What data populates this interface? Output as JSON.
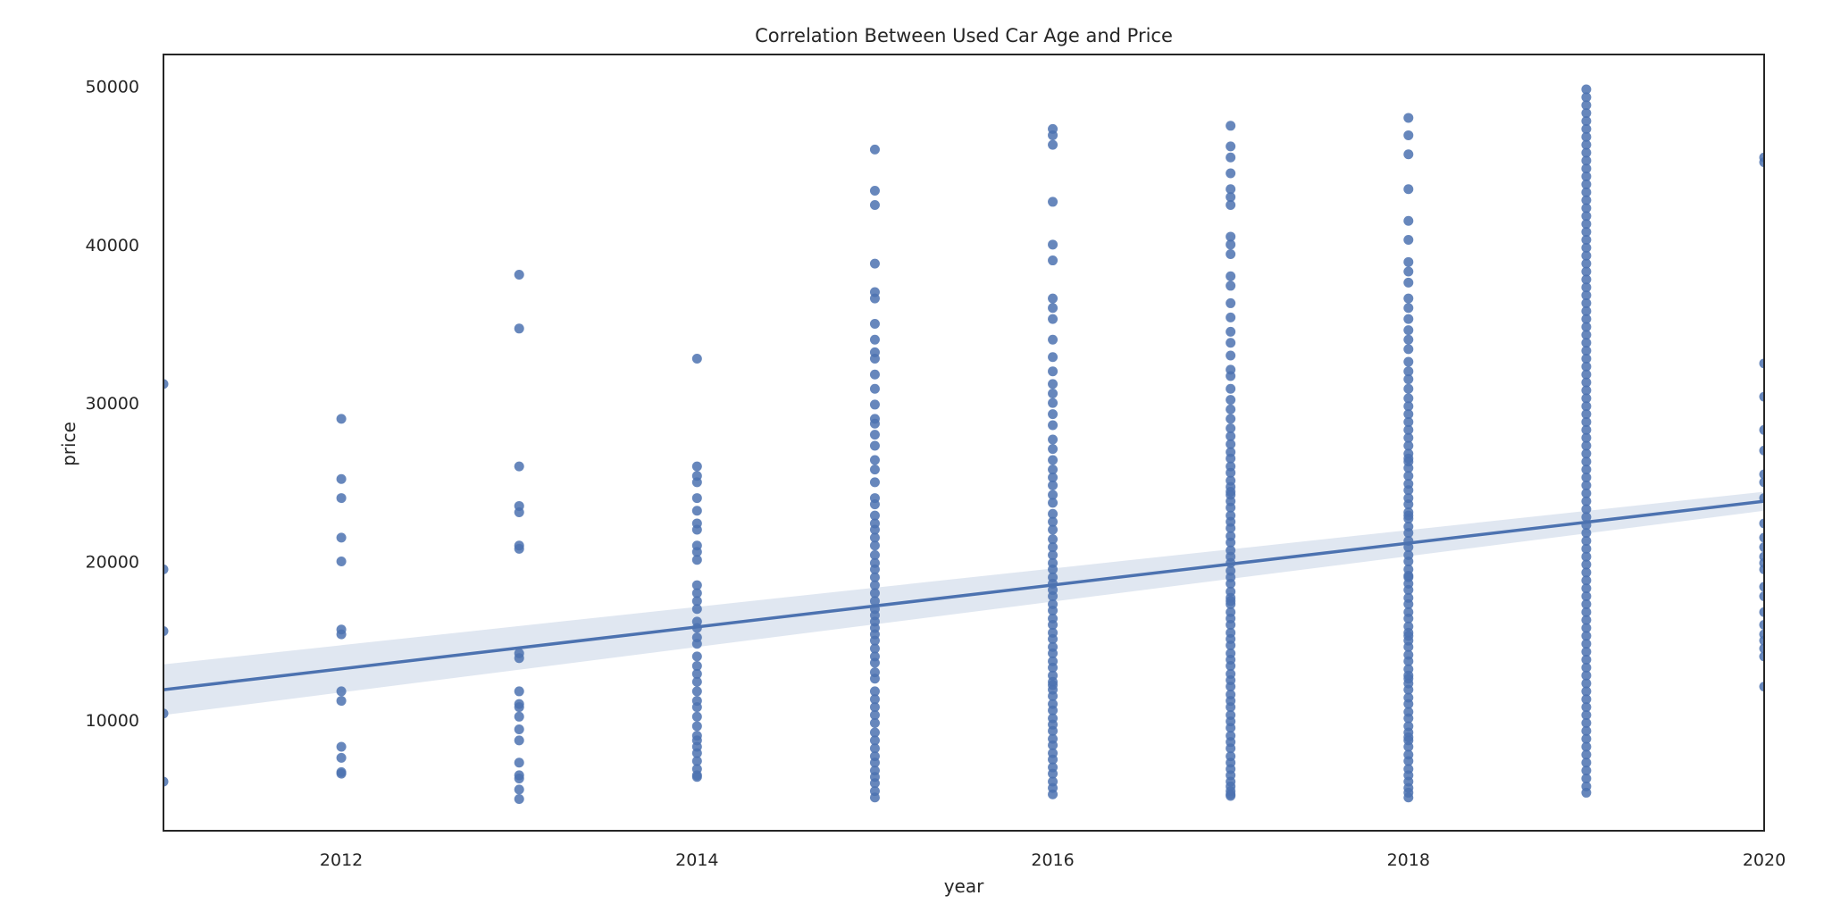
{
  "chart_data": {
    "type": "scatter",
    "title": "Correlation Between Used Car Age and Price",
    "xlabel": "year",
    "ylabel": "price",
    "xlim": [
      2011,
      2020
    ],
    "ylim": [
      3000,
      52000
    ],
    "grid": false,
    "xticks": [
      2012,
      2014,
      2016,
      2018,
      2020
    ],
    "yticks": [
      10000,
      20000,
      30000,
      40000,
      50000
    ],
    "xtick_labels": [
      "2012",
      "2014",
      "2016",
      "2018",
      "2020"
    ],
    "ytick_labels": [
      "10000",
      "20000",
      "30000",
      "40000",
      "50000"
    ],
    "point_color": "#4c72b0",
    "line_color": "#4c72b0",
    "band_color": "#dbe3ef",
    "regression": {
      "x": [
        2011,
        2020
      ],
      "y": [
        11900,
        23800
      ],
      "ci_lower": [
        10300,
        23200
      ],
      "ci_upper": [
        13500,
        24400
      ]
    },
    "series": [
      {
        "x": [
          2011,
          2011,
          2011,
          2011,
          2011
        ],
        "y": [
          31200,
          19500,
          15600,
          10400,
          6100
        ]
      },
      {
        "x": [
          2012,
          2012,
          2012,
          2012,
          2012,
          2012,
          2012,
          2012,
          2012,
          2012,
          2012,
          2012,
          2012
        ],
        "y": [
          29000,
          25200,
          24000,
          21500,
          20000,
          15700,
          15400,
          11800,
          11200,
          8300,
          7600,
          6700,
          6600
        ]
      },
      {
        "x": [
          2013,
          2013,
          2013,
          2013,
          2013,
          2013,
          2013,
          2013,
          2013,
          2013,
          2013,
          2013,
          2013,
          2013,
          2013,
          2013,
          2013,
          2013,
          2013,
          2013
        ],
        "y": [
          38100,
          34700,
          26000,
          23500,
          23100,
          21000,
          20800,
          14200,
          13900,
          11800,
          11000,
          10200,
          9400,
          8700,
          7300,
          6500,
          6300,
          5600,
          5000,
          10800
        ]
      },
      {
        "x": [
          2014,
          2014,
          2014,
          2014,
          2014,
          2014,
          2014,
          2014,
          2014,
          2014,
          2014,
          2014,
          2014,
          2014,
          2014,
          2014,
          2014,
          2014,
          2014,
          2014,
          2014,
          2014,
          2014,
          2014,
          2014,
          2014,
          2014,
          2014,
          2014,
          2014,
          2014,
          2014,
          2014,
          2014,
          2014,
          2014
        ],
        "y": [
          32800,
          26000,
          25400,
          25000,
          24000,
          23200,
          22400,
          21000,
          20600,
          20100,
          18500,
          18000,
          17500,
          17000,
          16200,
          15800,
          15200,
          14800,
          14000,
          13400,
          12900,
          12400,
          11800,
          11200,
          10800,
          10200,
          9600,
          9000,
          8700,
          8300,
          7900,
          7400,
          6900,
          6500,
          6400,
          22000
        ]
      },
      {
        "x": [
          2015,
          2015,
          2015,
          2015,
          2015,
          2015,
          2015,
          2015,
          2015,
          2015,
          2015,
          2015,
          2015,
          2015,
          2015,
          2015,
          2015,
          2015,
          2015,
          2015,
          2015,
          2015,
          2015,
          2015,
          2015,
          2015,
          2015,
          2015,
          2015,
          2015,
          2015,
          2015,
          2015,
          2015,
          2015,
          2015,
          2015,
          2015,
          2015,
          2015,
          2015,
          2015,
          2015,
          2015,
          2015,
          2015,
          2015,
          2015,
          2015,
          2015,
          2015,
          2015,
          2015,
          2015,
          2015,
          2015,
          2015,
          2015,
          2015,
          2015
        ],
        "y": [
          46000,
          43400,
          42500,
          38800,
          37000,
          36600,
          35000,
          34000,
          33200,
          32800,
          31800,
          30900,
          29900,
          29000,
          28700,
          28000,
          27300,
          26400,
          25800,
          25000,
          24000,
          23600,
          22900,
          22400,
          22000,
          21500,
          21000,
          20400,
          19900,
          19500,
          19000,
          18500,
          18000,
          17500,
          17000,
          16600,
          16200,
          15800,
          15400,
          15000,
          14500,
          14000,
          13600,
          13000,
          12600,
          11800,
          11300,
          10800,
          10300,
          9800,
          9200,
          8700,
          8200,
          7700,
          7300,
          6800,
          6400,
          6000,
          5500,
          5100
        ]
      },
      {
        "x": [
          2016,
          2016,
          2016,
          2016,
          2016,
          2016,
          2016,
          2016,
          2016,
          2016,
          2016,
          2016,
          2016,
          2016,
          2016,
          2016,
          2016,
          2016,
          2016,
          2016,
          2016,
          2016,
          2016,
          2016,
          2016,
          2016,
          2016,
          2016,
          2016,
          2016,
          2016,
          2016,
          2016,
          2016,
          2016,
          2016,
          2016,
          2016,
          2016,
          2016,
          2016,
          2016,
          2016,
          2016,
          2016,
          2016,
          2016,
          2016,
          2016,
          2016,
          2016,
          2016,
          2016,
          2016,
          2016,
          2016,
          2016,
          2016,
          2016,
          2016,
          2016,
          2016,
          2016,
          2016,
          2016,
          2016
        ],
        "y": [
          47300,
          46900,
          46300,
          42700,
          40000,
          39000,
          36600,
          36000,
          35300,
          34000,
          32900,
          32000,
          31200,
          30600,
          30000,
          29300,
          28600,
          27700,
          27100,
          26400,
          25800,
          25300,
          24800,
          24200,
          23700,
          23000,
          22500,
          22000,
          21400,
          20900,
          20400,
          19900,
          19500,
          19000,
          18600,
          18200,
          17800,
          17300,
          16900,
          16400,
          16000,
          15500,
          15100,
          14600,
          14200,
          13700,
          13300,
          12800,
          12400,
          11900,
          11500,
          11000,
          10600,
          10100,
          9700,
          9300,
          8800,
          8400,
          7900,
          7500,
          7000,
          6600,
          6100,
          5700,
          5300,
          12200
        ]
      },
      {
        "x": [
          2017,
          2017,
          2017,
          2017,
          2017,
          2017,
          2017,
          2017,
          2017,
          2017,
          2017,
          2017,
          2017,
          2017,
          2017,
          2017,
          2017,
          2017,
          2017,
          2017,
          2017,
          2017,
          2017,
          2017,
          2017,
          2017,
          2017,
          2017,
          2017,
          2017,
          2017,
          2017,
          2017,
          2017,
          2017,
          2017,
          2017,
          2017,
          2017,
          2017,
          2017,
          2017,
          2017,
          2017,
          2017,
          2017,
          2017,
          2017,
          2017,
          2017,
          2017,
          2017,
          2017,
          2017,
          2017,
          2017,
          2017,
          2017,
          2017,
          2017,
          2017,
          2017,
          2017,
          2017,
          2017,
          2017,
          2017,
          2017,
          2017,
          2017,
          2017,
          2017,
          2017,
          2017,
          2017,
          2017,
          2017,
          2017,
          2017,
          2017,
          2017
        ],
        "y": [
          47500,
          46200,
          45500,
          44500,
          43500,
          43000,
          42500,
          40500,
          40000,
          39400,
          38000,
          37400,
          36300,
          35400,
          34500,
          33800,
          33000,
          32100,
          31700,
          30900,
          30200,
          29600,
          29000,
          28400,
          27900,
          27400,
          26900,
          26500,
          26000,
          25600,
          25100,
          24700,
          24200,
          23800,
          23400,
          22900,
          22500,
          22100,
          21600,
          21200,
          20700,
          20300,
          19900,
          19400,
          19000,
          18600,
          18100,
          17700,
          17300,
          16800,
          16400,
          16000,
          15500,
          15100,
          14700,
          14200,
          13800,
          13400,
          12900,
          12500,
          12100,
          11600,
          11200,
          10800,
          10300,
          9900,
          9500,
          9000,
          8600,
          8200,
          7700,
          7300,
          6900,
          6500,
          6100,
          5800,
          5500,
          5300,
          5200,
          24400,
          17500
        ]
      },
      {
        "x": [
          2018,
          2018,
          2018,
          2018,
          2018,
          2018,
          2018,
          2018,
          2018,
          2018,
          2018,
          2018,
          2018,
          2018,
          2018,
          2018,
          2018,
          2018,
          2018,
          2018,
          2018,
          2018,
          2018,
          2018,
          2018,
          2018,
          2018,
          2018,
          2018,
          2018,
          2018,
          2018,
          2018,
          2018,
          2018,
          2018,
          2018,
          2018,
          2018,
          2018,
          2018,
          2018,
          2018,
          2018,
          2018,
          2018,
          2018,
          2018,
          2018,
          2018,
          2018,
          2018,
          2018,
          2018,
          2018,
          2018,
          2018,
          2018,
          2018,
          2018,
          2018,
          2018,
          2018,
          2018,
          2018,
          2018,
          2018,
          2018,
          2018,
          2018,
          2018,
          2018,
          2018,
          2018,
          2018,
          2018,
          2018,
          2018,
          2018,
          2018,
          2018,
          2018
        ],
        "y": [
          48000,
          46900,
          45700,
          43500,
          41500,
          40300,
          38900,
          38300,
          37600,
          36600,
          36000,
          35300,
          34600,
          34000,
          33400,
          32600,
          32000,
          31500,
          30900,
          30300,
          29800,
          29300,
          28800,
          28300,
          27800,
          27300,
          26800,
          26300,
          25900,
          25400,
          24900,
          24500,
          24000,
          23600,
          23100,
          22700,
          22200,
          21800,
          21300,
          20900,
          20400,
          20000,
          19500,
          19100,
          18600,
          18200,
          17700,
          17300,
          16800,
          16400,
          15900,
          15500,
          15000,
          14600,
          14100,
          13700,
          13200,
          12800,
          12300,
          11900,
          11400,
          11000,
          10500,
          10100,
          9600,
          9200,
          8700,
          8300,
          7800,
          7400,
          6900,
          6500,
          6100,
          5700,
          5400,
          5100,
          26500,
          19000,
          12600,
          8900,
          22900,
          15300
        ]
      },
      {
        "x": [
          2019,
          2019,
          2019,
          2019,
          2019,
          2019,
          2019,
          2019,
          2019,
          2019,
          2019,
          2019,
          2019,
          2019,
          2019,
          2019,
          2019,
          2019,
          2019,
          2019,
          2019,
          2019,
          2019,
          2019,
          2019,
          2019,
          2019,
          2019,
          2019,
          2019,
          2019,
          2019,
          2019,
          2019,
          2019,
          2019,
          2019,
          2019,
          2019,
          2019,
          2019,
          2019,
          2019,
          2019,
          2019,
          2019,
          2019,
          2019,
          2019,
          2019,
          2019,
          2019,
          2019,
          2019,
          2019,
          2019,
          2019,
          2019,
          2019,
          2019,
          2019,
          2019,
          2019,
          2019,
          2019,
          2019,
          2019,
          2019,
          2019,
          2019,
          2019,
          2019,
          2019,
          2019,
          2019,
          2019,
          2019,
          2019,
          2019,
          2019,
          2019,
          2019,
          2019,
          2019,
          2019,
          2019,
          2019,
          2019,
          2019,
          2019
        ],
        "y": [
          49800,
          49300,
          48800,
          48300,
          47800,
          47300,
          46800,
          46300,
          45800,
          45300,
          44800,
          44300,
          43800,
          43300,
          42800,
          42300,
          41800,
          41300,
          40800,
          40300,
          39800,
          39300,
          38800,
          38300,
          37800,
          37300,
          36800,
          36300,
          35800,
          35300,
          34800,
          34300,
          33800,
          33300,
          32800,
          32300,
          31800,
          31300,
          30800,
          30300,
          29800,
          29300,
          28800,
          28300,
          27800,
          27300,
          26800,
          26300,
          25800,
          25300,
          24800,
          24300,
          23800,
          23300,
          22800,
          22300,
          21800,
          21300,
          20800,
          20300,
          19800,
          19300,
          18800,
          18300,
          17800,
          17300,
          16800,
          16300,
          15800,
          15300,
          14800,
          14300,
          13800,
          13300,
          12800,
          12300,
          11800,
          11300,
          10800,
          10300,
          9800,
          9300,
          8800,
          8300,
          7800,
          7300,
          6800,
          6300,
          5800,
          5400
        ]
      },
      {
        "x": [
          2020,
          2020,
          2020,
          2020,
          2020,
          2020,
          2020,
          2020,
          2020,
          2020,
          2020,
          2020,
          2020,
          2020,
          2020,
          2020,
          2020,
          2020,
          2020,
          2020,
          2020,
          2020,
          2020,
          2020
        ],
        "y": [
          45500,
          45200,
          32500,
          30400,
          28300,
          27000,
          25500,
          25000,
          24000,
          22400,
          21500,
          20900,
          20300,
          19900,
          19500,
          18400,
          17800,
          16800,
          16000,
          15400,
          15000,
          14500,
          14000,
          12100
        ]
      }
    ]
  }
}
